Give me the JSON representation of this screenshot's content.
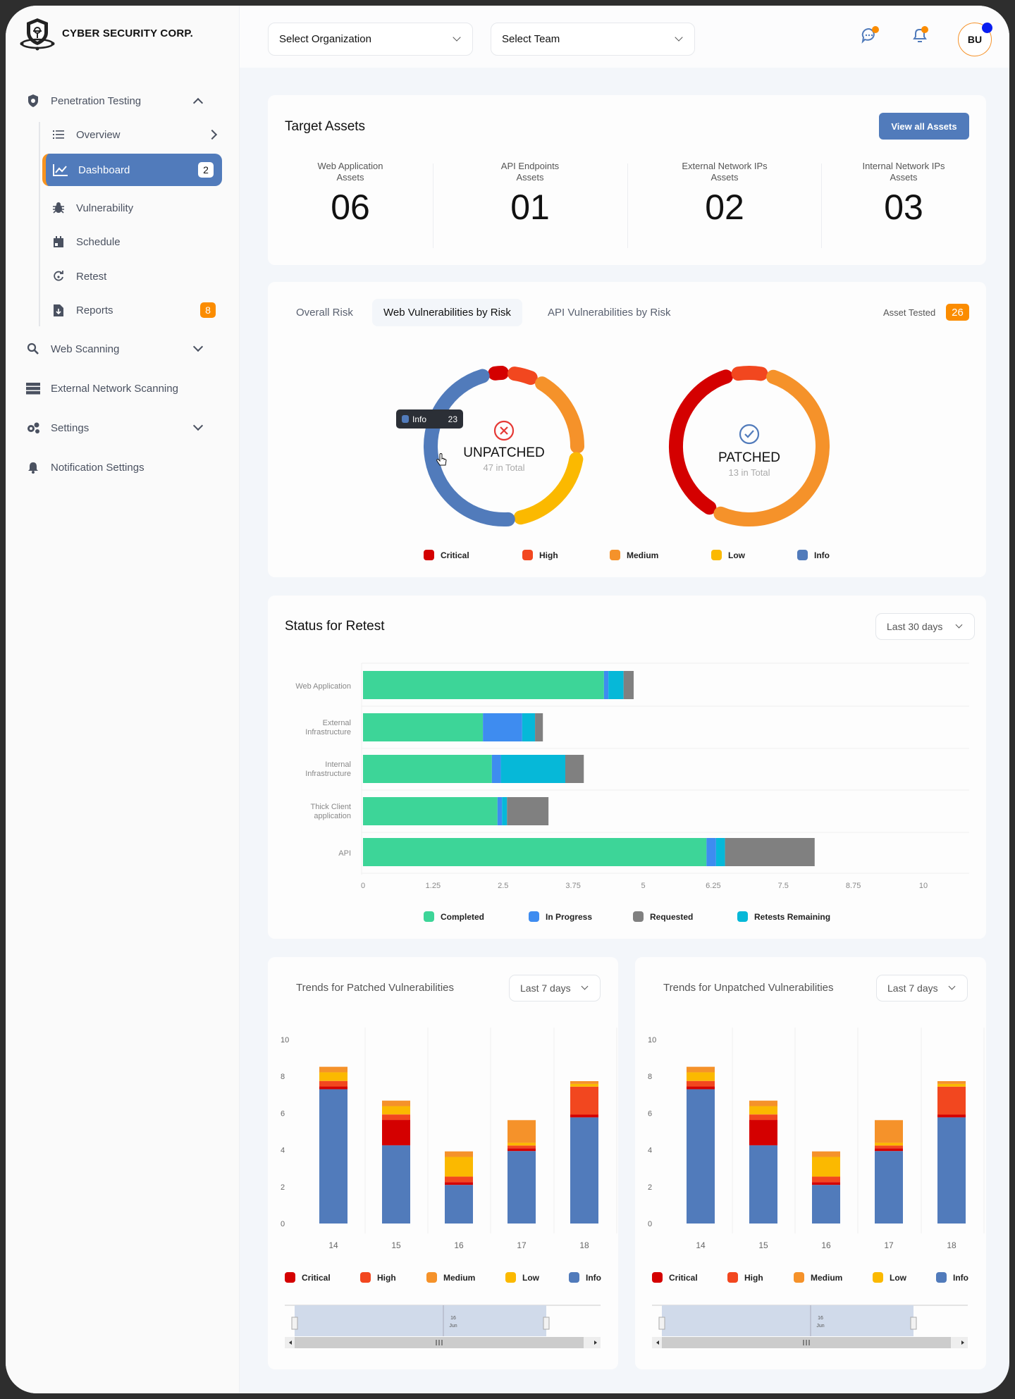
{
  "brand": {
    "name": "CYBER SECURITY CORP."
  },
  "header": {
    "org_select": "Select Organization",
    "team_select": "Select Team",
    "avatar_initials": "BU"
  },
  "sidebar": {
    "penetration_testing": "Penetration Testing",
    "items": [
      {
        "label": "Overview",
        "icon": "list-icon"
      },
      {
        "label": "Dashboard",
        "icon": "chart-line-icon",
        "badge": "2"
      },
      {
        "label": "Vulnerability",
        "icon": "bug-icon"
      },
      {
        "label": "Schedule",
        "icon": "calendar-icon"
      },
      {
        "label": "Retest",
        "icon": "retest-icon"
      },
      {
        "label": "Reports",
        "icon": "file-download-icon",
        "badge": "8"
      }
    ],
    "web_scanning": "Web Scanning",
    "external_network_scanning": "External Network Scanning",
    "settings": "Settings",
    "notification_settings": "Notification Settings"
  },
  "target_assets": {
    "title": "Target Assets",
    "view_all": "View all Assets",
    "stats": [
      {
        "label1": "Web Application",
        "label2": "Assets",
        "value": "06"
      },
      {
        "label1": "API Endpoints",
        "label2": "Assets",
        "value": "01"
      },
      {
        "label1": "External Network IPs",
        "label2": "Assets",
        "value": "02"
      },
      {
        "label1": "Internal Network IPs",
        "label2": "Assets",
        "value": "03"
      }
    ]
  },
  "risk": {
    "tabs": [
      "Overall Risk",
      "Web Vulnerabilities by Risk",
      "API Vulnerabilities by Risk"
    ],
    "active_tab": 1,
    "asset_tested_label": "Asset Tested",
    "asset_tested_value": "26",
    "tooltip": {
      "label": "Info",
      "value": "23"
    },
    "unpatched": {
      "title": "UNPATCHED",
      "subtitle": "47 in Total"
    },
    "patched": {
      "title": "PATCHED",
      "subtitle": "13 in Total"
    },
    "legend": [
      "Critical",
      "High",
      "Medium",
      "Low",
      "Info"
    ]
  },
  "colors": {
    "critical": "#d40000",
    "high": "#f2471f",
    "medium": "#f5922a",
    "low": "#fbb900",
    "info": "#517bbb",
    "completed": "#3dd598",
    "in_progress": "#3e8cf0",
    "requested": "#808080",
    "retests_remaining": "#06b8d8",
    "accent": "#517bbb",
    "badge_orange": "#fb8c00"
  },
  "retest": {
    "title": "Status for Retest",
    "range": "Last 30 days"
  },
  "trends_patched": {
    "title": "Trends for Patched Vulnerabilities",
    "range": "Last 7 days",
    "nav_label1": "16",
    "nav_label2": "Jun"
  },
  "trends_unpatched": {
    "title": "Trends for Unpatched Vulnerabilities",
    "range": "Last 7 days",
    "nav_label1": "16",
    "nav_label2": "Jun"
  },
  "chart_data": [
    {
      "type": "pie",
      "name": "UNPATCHED",
      "categories": [
        "Critical",
        "High",
        "Medium",
        "Low",
        "Info"
      ],
      "values": [
        2,
        3,
        9,
        10,
        23
      ]
    },
    {
      "type": "pie",
      "name": "PATCHED",
      "categories": [
        "Critical",
        "High",
        "Medium"
      ],
      "values": [
        5,
        1,
        7
      ]
    },
    {
      "type": "bar",
      "orientation": "horizontal",
      "stacked": true,
      "categories": [
        "Web Application",
        "External Infrastructure",
        "Internal Infrastructure",
        "Thick Client application",
        "API"
      ],
      "xlim": [
        0,
        10
      ],
      "xticks": [
        "0",
        "1.25",
        "2.5",
        "3.75",
        "5",
        "6.25",
        "7.5",
        "8.75",
        "10"
      ],
      "grid": true,
      "legend": "bottom",
      "series": [
        {
          "name": "Completed",
          "values": [
            4.3,
            2.14,
            2.3,
            2.4,
            6.13
          ]
        },
        {
          "name": "In Progress",
          "values": [
            0.08,
            0.7,
            0.16,
            0.08,
            0.17
          ]
        },
        {
          "name": "Retests Remaining",
          "values": [
            0.27,
            0.23,
            1.15,
            0.09,
            0.16
          ]
        },
        {
          "name": "Requested",
          "values": [
            0.18,
            0.14,
            0.33,
            0.74,
            1.6
          ]
        }
      ]
    },
    {
      "type": "bar",
      "stacked": true,
      "title": "Trends for Patched Vulnerabilities",
      "categories": [
        "14",
        "15",
        "16",
        "17",
        "18"
      ],
      "ylim": [
        0,
        10
      ],
      "yticks": [
        "0",
        "2",
        "4",
        "6",
        "8",
        "10"
      ],
      "legend": "bottom",
      "series": [
        {
          "name": "Info",
          "values": [
            7.3,
            4.25,
            2.1,
            3.94,
            5.77
          ]
        },
        {
          "name": "Critical",
          "values": [
            0.15,
            1.38,
            0.15,
            0.15,
            0.15
          ]
        },
        {
          "name": "High",
          "values": [
            0.3,
            0.3,
            0.3,
            0.15,
            1.52
          ]
        },
        {
          "name": "Low",
          "values": [
            0.47,
            0.45,
            1.07,
            0.15,
            0.15
          ]
        },
        {
          "name": "Medium",
          "values": [
            0.3,
            0.3,
            0.3,
            1.23,
            0.15
          ]
        }
      ]
    },
    {
      "type": "bar",
      "stacked": true,
      "title": "Trends for Unpatched Vulnerabilities",
      "categories": [
        "14",
        "15",
        "16",
        "17",
        "18"
      ],
      "ylim": [
        0,
        10
      ],
      "yticks": [
        "0",
        "2",
        "4",
        "6",
        "8",
        "10"
      ],
      "legend": "bottom",
      "series": [
        {
          "name": "Info",
          "values": [
            7.3,
            4.25,
            2.1,
            3.94,
            5.77
          ]
        },
        {
          "name": "Critical",
          "values": [
            0.15,
            1.38,
            0.15,
            0.15,
            0.15
          ]
        },
        {
          "name": "High",
          "values": [
            0.3,
            0.3,
            0.3,
            0.15,
            1.52
          ]
        },
        {
          "name": "Low",
          "values": [
            0.47,
            0.45,
            1.07,
            0.15,
            0.15
          ]
        },
        {
          "name": "Medium",
          "values": [
            0.3,
            0.3,
            0.3,
            1.23,
            0.15
          ]
        }
      ]
    }
  ]
}
